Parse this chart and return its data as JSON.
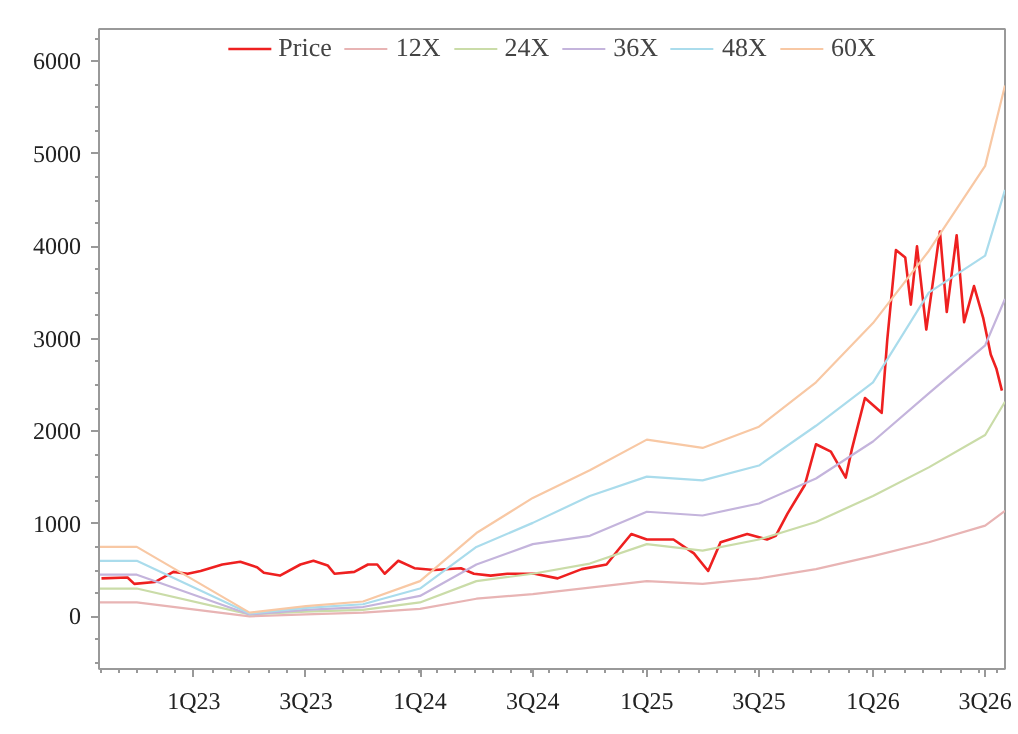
{
  "chart_data": {
    "type": "line",
    "legend": "top",
    "grid": false,
    "line_style": "solid",
    "marker": "none",
    "xlim": [
      "2022-08-01",
      "2026-08-02"
    ],
    "ylim": [
      -570,
      6350
    ],
    "xticks": [
      {
        "value": "2023-01-01",
        "label": "1Q23"
      },
      {
        "value": "2023-07-01",
        "label": "3Q23"
      },
      {
        "value": "2024-01-01",
        "label": "1Q24"
      },
      {
        "value": "2024-07-01",
        "label": "3Q24"
      },
      {
        "value": "2025-01-01",
        "label": "1Q25"
      },
      {
        "value": "2025-07-01",
        "label": "3Q25"
      },
      {
        "value": "2026-01-01",
        "label": "1Q26"
      },
      {
        "value": "2026-07-01",
        "label": "3Q26"
      }
    ],
    "yticks": [
      0,
      1000,
      2000,
      3000,
      4000,
      5000,
      6000
    ],
    "series": [
      {
        "name": "Price",
        "color": "#ee2020",
        "x": [
          "2022-08-05",
          "2022-09-16",
          "2022-09-27",
          "2022-10-30",
          "2022-11-29",
          "2022-12-22",
          "2023-01-12",
          "2023-02-16",
          "2023-03-17",
          "2023-04-13",
          "2023-04-24",
          "2023-05-20",
          "2023-06-22",
          "2023-07-13",
          "2023-08-05",
          "2023-08-16",
          "2023-09-17",
          "2023-10-09",
          "2023-10-24",
          "2023-11-05",
          "2023-11-27",
          "2023-12-23",
          "2024-01-24",
          "2024-03-07",
          "2024-03-28",
          "2024-04-24",
          "2024-05-21",
          "2024-07-04",
          "2024-08-10",
          "2024-09-18",
          "2024-10-28",
          "2024-11-16",
          "2024-12-07",
          "2025-01-01",
          "2025-02-13",
          "2025-03-18",
          "2025-04-10",
          "2025-04-30",
          "2025-06-12",
          "2025-07-14",
          "2025-07-28",
          "2025-08-16",
          "2025-09-13",
          "2025-10-01",
          "2025-10-25",
          "2025-11-18",
          "2025-11-28",
          "2025-12-19",
          "2026-01-15",
          "2026-01-24",
          "2026-02-07",
          "2026-02-22",
          "2026-03-03",
          "2026-03-13",
          "2026-03-28",
          "2026-04-19",
          "2026-04-30",
          "2026-05-16",
          "2026-05-28",
          "2026-06-13",
          "2026-06-28",
          "2026-07-10",
          "2026-07-19",
          "2026-07-28"
        ],
        "values": [
          410,
          420,
          350,
          370,
          480,
          460,
          490,
          560,
          590,
          530,
          470,
          440,
          560,
          600,
          550,
          460,
          480,
          560,
          560,
          460,
          600,
          520,
          500,
          520,
          460,
          440,
          460,
          460,
          410,
          510,
          560,
          720,
          890,
          830,
          830,
          680,
          490,
          800,
          890,
          830,
          870,
          1110,
          1420,
          1860,
          1780,
          1500,
          1810,
          2360,
          2200,
          2990,
          3960,
          3880,
          3370,
          4000,
          3100,
          4160,
          3290,
          4120,
          3180,
          3570,
          3220,
          2830,
          2680,
          2440
        ]
      },
      {
        "name": "12X",
        "color": "#e8b4b4",
        "x": [
          "2022-08-01",
          "2022-10-01",
          "2023-04-01",
          "2023-07-01",
          "2023-10-01",
          "2024-01-01",
          "2024-04-01",
          "2024-07-01",
          "2024-10-01",
          "2025-01-01",
          "2025-04-01",
          "2025-07-01",
          "2025-10-01",
          "2026-01-01",
          "2026-04-01",
          "2026-07-01",
          "2026-08-02"
        ],
        "values": [
          150,
          150,
          0,
          20,
          40,
          80,
          190,
          240,
          310,
          380,
          350,
          410,
          510,
          650,
          800,
          980,
          1140
        ]
      },
      {
        "name": "24X",
        "color": "#cadca8",
        "x": [
          "2022-08-01",
          "2022-10-01",
          "2023-04-01",
          "2023-07-01",
          "2023-10-01",
          "2024-01-01",
          "2024-04-01",
          "2024-07-01",
          "2024-10-01",
          "2025-01-01",
          "2025-04-01",
          "2025-07-01",
          "2025-10-01",
          "2026-01-01",
          "2026-04-01",
          "2026-07-01",
          "2026-08-02"
        ],
        "values": [
          300,
          300,
          20,
          50,
          70,
          150,
          380,
          460,
          570,
          780,
          710,
          830,
          1020,
          1300,
          1610,
          1960,
          2320
        ]
      },
      {
        "name": "36X",
        "color": "#c4b4dc",
        "x": [
          "2022-08-01",
          "2022-10-01",
          "2023-04-01",
          "2023-07-01",
          "2023-10-01",
          "2024-01-01",
          "2024-04-01",
          "2024-07-01",
          "2024-10-01",
          "2025-01-01",
          "2025-04-01",
          "2025-07-01",
          "2025-10-01",
          "2026-01-01",
          "2026-04-01",
          "2026-07-01",
          "2026-08-02"
        ],
        "values": [
          450,
          450,
          20,
          70,
          100,
          220,
          560,
          780,
          870,
          1130,
          1090,
          1220,
          1490,
          1890,
          2410,
          2930,
          3430
        ]
      },
      {
        "name": "48X",
        "color": "#aadcec",
        "x": [
          "2022-08-01",
          "2022-10-01",
          "2023-04-01",
          "2023-07-01",
          "2023-10-01",
          "2024-01-01",
          "2024-04-01",
          "2024-07-01",
          "2024-10-01",
          "2025-01-01",
          "2025-04-01",
          "2025-07-01",
          "2025-10-01",
          "2026-01-01",
          "2026-04-01",
          "2026-07-01",
          "2026-08-02"
        ],
        "values": [
          600,
          600,
          30,
          90,
          130,
          300,
          750,
          1010,
          1300,
          1510,
          1470,
          1630,
          2060,
          2530,
          3500,
          3900,
          4610
        ]
      },
      {
        "name": "60X",
        "color": "#f8c8a4",
        "x": [
          "2022-08-01",
          "2022-10-01",
          "2023-04-01",
          "2023-07-01",
          "2023-10-01",
          "2024-01-01",
          "2024-04-01",
          "2024-07-01",
          "2024-10-01",
          "2025-01-01",
          "2025-04-01",
          "2025-07-01",
          "2025-10-01",
          "2026-01-01",
          "2026-04-01",
          "2026-07-01",
          "2026-08-02"
        ],
        "values": [
          750,
          750,
          40,
          110,
          160,
          380,
          900,
          1280,
          1580,
          1910,
          1820,
          2050,
          2530,
          3170,
          3950,
          4870,
          5740
        ]
      }
    ]
  }
}
